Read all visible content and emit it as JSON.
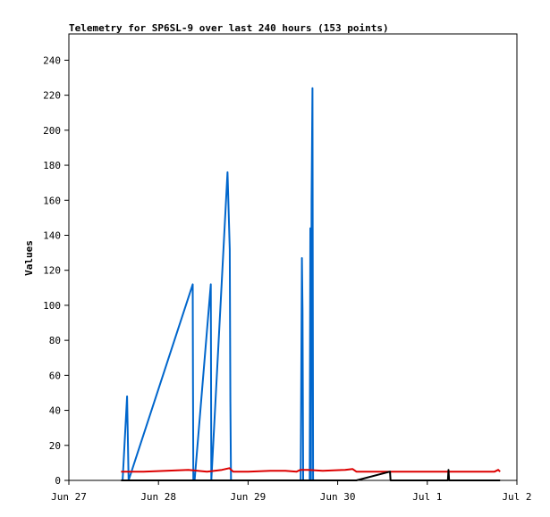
{
  "chart_data": {
    "type": "line",
    "title": "Telemetry for SP6SL-9 over last 240 hours (153 points)",
    "ylabel": "Values",
    "xlabel": "",
    "xlim": [
      "2023-06-27T00:00",
      "2023-07-02T00:00"
    ],
    "ylim": [
      0,
      255
    ],
    "x_ticks": [
      {
        "x": "2023-06-27T00:00",
        "label": "Jun 27"
      },
      {
        "x": "2023-06-28T00:00",
        "label": "Jun 28"
      },
      {
        "x": "2023-06-29T00:00",
        "label": "Jun 29"
      },
      {
        "x": "2023-06-30T00:00",
        "label": "Jun 30"
      },
      {
        "x": "2023-07-01T00:00",
        "label": "Jul 1"
      },
      {
        "x": "2023-07-02T00:00",
        "label": "Jul 2"
      }
    ],
    "y_ticks": [
      0,
      20,
      40,
      60,
      80,
      100,
      120,
      140,
      160,
      180,
      200,
      220,
      240
    ],
    "grid": false,
    "series": [
      {
        "color": "#0066cc",
        "points": [
          [
            "2023-06-27T14:24",
            0
          ],
          [
            "2023-06-27T15:36",
            48
          ],
          [
            "2023-06-27T16:00",
            0
          ],
          [
            "2023-06-28T09:10",
            112
          ],
          [
            "2023-06-28T09:15",
            55
          ],
          [
            "2023-06-28T09:20",
            0
          ],
          [
            "2023-06-28T09:40",
            0
          ],
          [
            "2023-06-28T14:00",
            112
          ],
          [
            "2023-06-28T14:10",
            0
          ],
          [
            "2023-06-28T18:30",
            176
          ],
          [
            "2023-06-28T19:05",
            132
          ],
          [
            "2023-06-28T19:15",
            45
          ],
          [
            "2023-06-28T19:25",
            0
          ],
          [
            "2023-06-29T14:05",
            0
          ],
          [
            "2023-06-29T14:25",
            127
          ],
          [
            "2023-06-29T14:35",
            97
          ],
          [
            "2023-06-29T14:45",
            0
          ],
          [
            "2023-06-29T16:30",
            0
          ],
          [
            "2023-06-29T16:40",
            144
          ],
          [
            "2023-06-29T16:50",
            0
          ],
          [
            "2023-06-29T17:00",
            160
          ],
          [
            "2023-06-29T17:15",
            224
          ],
          [
            "2023-06-29T17:25",
            0
          ]
        ]
      },
      {
        "color": "#dd0000",
        "points": [
          [
            "2023-06-27T14:00",
            5
          ],
          [
            "2023-06-27T20:00",
            5
          ],
          [
            "2023-06-28T02:00",
            5.5
          ],
          [
            "2023-06-28T08:00",
            6
          ],
          [
            "2023-06-28T13:00",
            5
          ],
          [
            "2023-06-28T17:00",
            6
          ],
          [
            "2023-06-28T19:00",
            7
          ],
          [
            "2023-06-28T20:00",
            5
          ],
          [
            "2023-06-29T00:00",
            5
          ],
          [
            "2023-06-29T06:00",
            5.5
          ],
          [
            "2023-06-29T10:00",
            5.5
          ],
          [
            "2023-06-29T13:00",
            5
          ],
          [
            "2023-06-29T14:00",
            6
          ],
          [
            "2023-06-29T16:00",
            6
          ],
          [
            "2023-06-29T20:00",
            5.5
          ],
          [
            "2023-06-30T02:00",
            6
          ],
          [
            "2023-06-30T04:00",
            6.5
          ],
          [
            "2023-06-30T05:00",
            5
          ],
          [
            "2023-06-30T12:00",
            5
          ],
          [
            "2023-07-01T00:00",
            5
          ],
          [
            "2023-07-01T12:00",
            5
          ],
          [
            "2023-07-01T18:00",
            5
          ],
          [
            "2023-07-01T19:00",
            6
          ],
          [
            "2023-07-01T19:30",
            5
          ]
        ]
      },
      {
        "color": "#000000",
        "points": [
          [
            "2023-06-27T14:00",
            0
          ],
          [
            "2023-06-30T05:00",
            0
          ],
          [
            "2023-06-30T14:00",
            5
          ],
          [
            "2023-06-30T14:10",
            0
          ],
          [
            "2023-07-01T05:30",
            0
          ],
          [
            "2023-07-01T05:40",
            6
          ],
          [
            "2023-07-01T05:50",
            0
          ],
          [
            "2023-07-01T19:30",
            0
          ]
        ]
      }
    ]
  }
}
